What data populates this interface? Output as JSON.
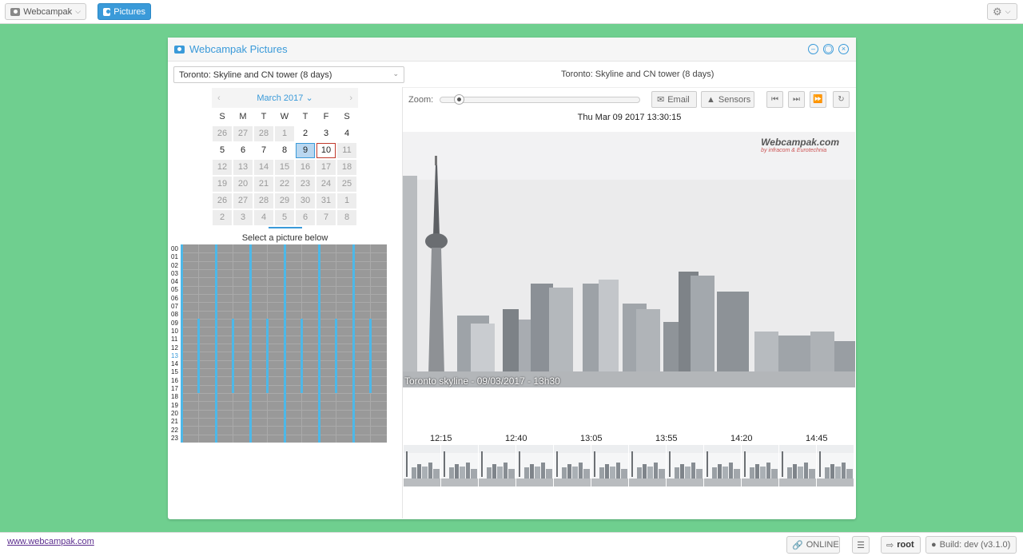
{
  "topbar": {
    "app_button": "Webcampak",
    "pictures_button": "Pictures"
  },
  "window": {
    "title": "Webcampak Pictures",
    "source_select": "Toronto: Skyline and CN tower (8 days)",
    "source_name": "Toronto: Skyline and CN tower (8 days)"
  },
  "calendar": {
    "month": "March 2017",
    "weekdays": [
      "S",
      "M",
      "T",
      "W",
      "T",
      "F",
      "S"
    ],
    "days": [
      "26",
      "27",
      "28",
      "1",
      "2",
      "3",
      "4",
      "5",
      "6",
      "7",
      "8",
      "9",
      "10",
      "11",
      "12",
      "13",
      "14",
      "15",
      "16",
      "17",
      "18",
      "19",
      "20",
      "21",
      "22",
      "23",
      "24",
      "25",
      "26",
      "27",
      "28",
      "29",
      "30",
      "31",
      "1",
      "2",
      "3",
      "4",
      "5",
      "6",
      "7",
      "8"
    ],
    "days_with_pictures": [
      "2",
      "3",
      "4",
      "5",
      "6",
      "7",
      "8",
      "9",
      "10"
    ],
    "selected_day": "9",
    "today": "10"
  },
  "picker": {
    "label": "Select a picture below",
    "hours": [
      "00",
      "01",
      "02",
      "03",
      "04",
      "05",
      "06",
      "07",
      "08",
      "09",
      "10",
      "11",
      "12",
      "13",
      "14",
      "15",
      "16",
      "17",
      "18",
      "19",
      "20",
      "21",
      "22",
      "23"
    ],
    "selected_hour": "13"
  },
  "viewer": {
    "zoom_label": "Zoom:",
    "email_label": "Email",
    "sensors_label": "Sensors",
    "timestamp": "Thu Mar 09 2017 13:30:15",
    "logo_text": "Webcampak.com",
    "logo_sub": "by infracom & Eurotechnia",
    "caption": "Toronto skyline - 09/03/2017 - 13h30",
    "thumb_times": [
      "12:15",
      "12:40",
      "13:05",
      "13:55",
      "14:20",
      "14:45"
    ]
  },
  "footer": {
    "link": "www.webcampak.com",
    "status": "ONLINE",
    "user": "root",
    "build": "Build: dev (v3.1.0)"
  },
  "colors": {
    "background": "#6fcf8f",
    "accent": "#3a9ad9",
    "picture_available": "#4db8e8"
  }
}
